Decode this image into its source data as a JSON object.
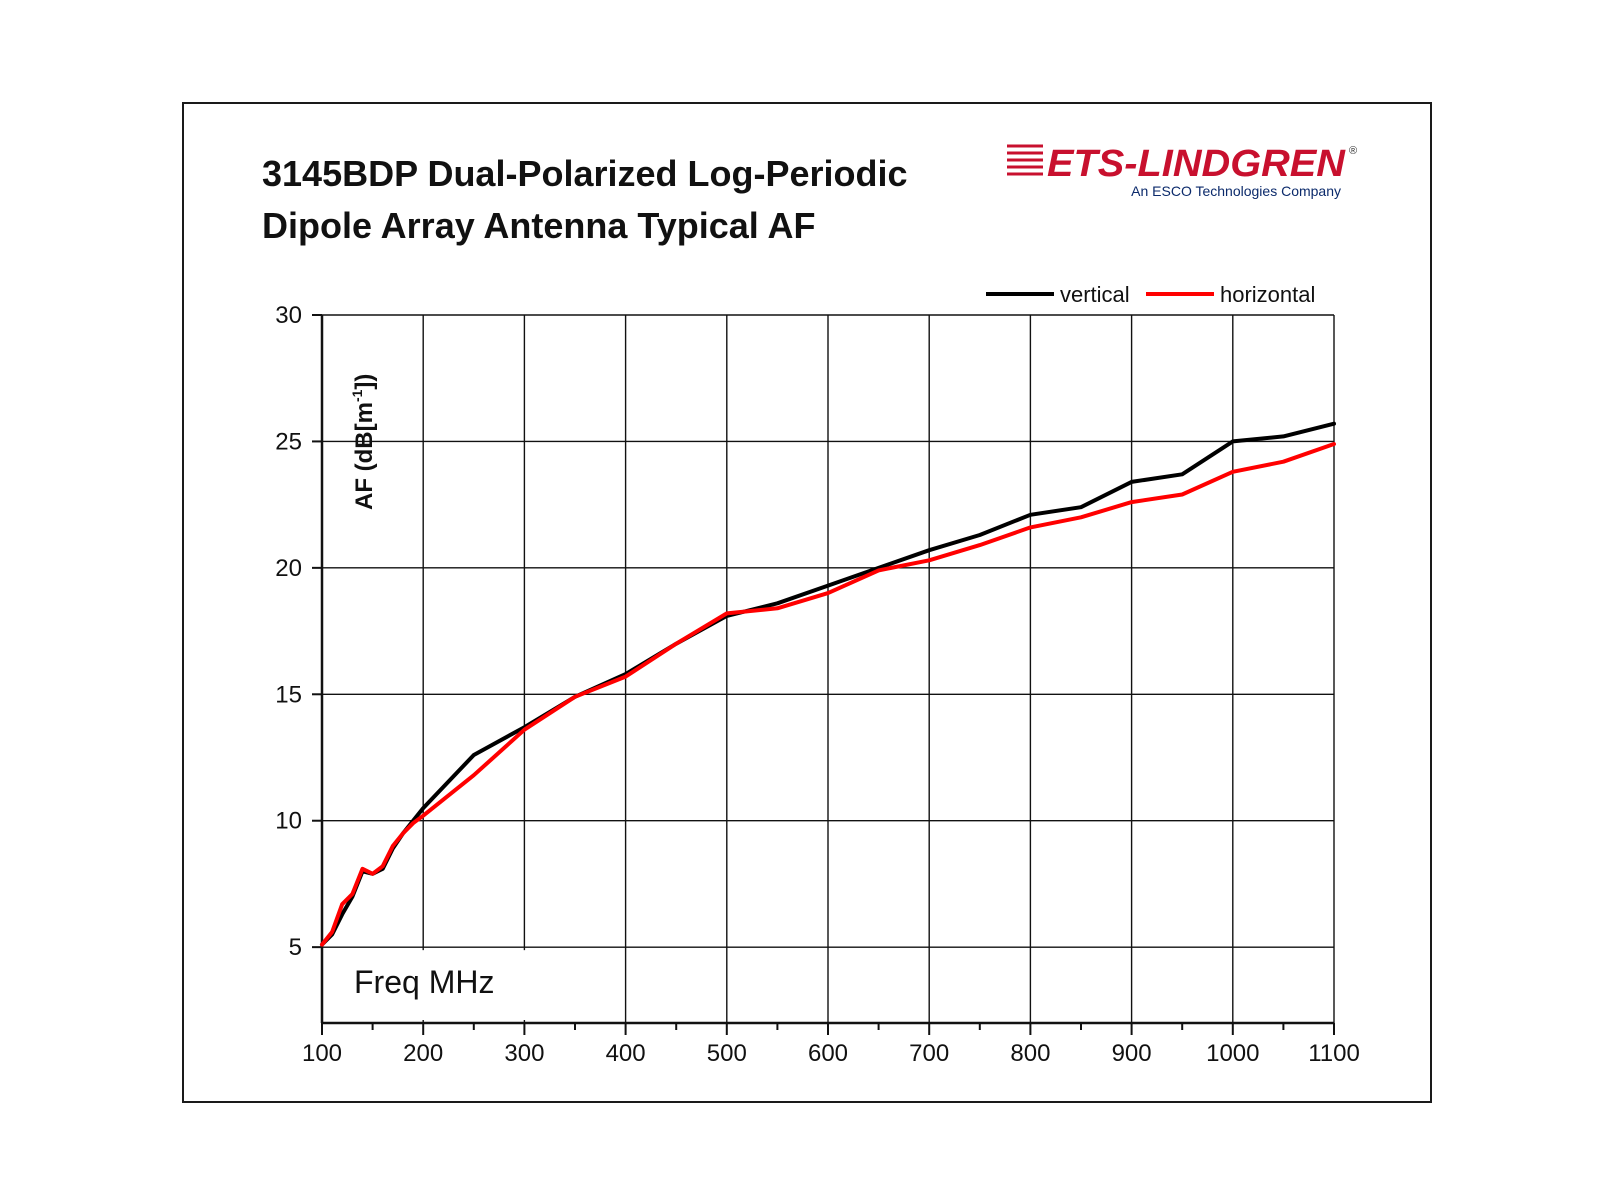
{
  "title": {
    "line1": "3145BDP Dual-Polarized Log-Periodic",
    "line2": "Dipole Array Antenna Typical AF"
  },
  "logo": {
    "brand": "ETS-LINDGREN",
    "tagline": "An ESCO Technologies Company",
    "color": "#c8102e",
    "navy": "#0b2a6b"
  },
  "chart_data": {
    "type": "line",
    "xlabel": "Freq MHz",
    "ylabel": "AF (dB[m",
    "ylabel_sup": "-1",
    "ylabel_end": "])",
    "xlim": [
      100,
      1100
    ],
    "ylim": [
      2,
      30
    ],
    "xticks": [
      100,
      200,
      300,
      400,
      500,
      600,
      700,
      800,
      900,
      1000,
      1100
    ],
    "yticks": [
      5,
      10,
      15,
      20,
      25,
      30
    ],
    "grid": true,
    "legend_position": "top-right",
    "series": [
      {
        "name": "vertical",
        "color": "#000000",
        "x": [
          100,
          110,
          120,
          130,
          140,
          150,
          160,
          170,
          180,
          190,
          200,
          250,
          300,
          350,
          400,
          450,
          500,
          550,
          600,
          650,
          700,
          750,
          800,
          850,
          900,
          950,
          1000,
          1050,
          1100
        ],
        "y": [
          5.1,
          5.5,
          6.3,
          7.0,
          8.0,
          7.9,
          8.1,
          8.9,
          9.5,
          10.0,
          10.5,
          12.6,
          13.7,
          14.9,
          15.8,
          17.0,
          18.1,
          18.6,
          19.3,
          20.0,
          20.7,
          21.3,
          22.1,
          22.4,
          23.4,
          23.7,
          25.0,
          25.2,
          25.7
        ]
      },
      {
        "name": "horizontal",
        "color": "#ff0000",
        "x": [
          100,
          110,
          120,
          130,
          140,
          150,
          160,
          170,
          180,
          190,
          200,
          250,
          300,
          350,
          400,
          450,
          500,
          550,
          600,
          650,
          700,
          750,
          800,
          850,
          900,
          950,
          1000,
          1050,
          1100
        ],
        "y": [
          5.1,
          5.6,
          6.7,
          7.1,
          8.1,
          7.9,
          8.2,
          9.0,
          9.5,
          9.9,
          10.2,
          11.8,
          13.6,
          14.9,
          15.7,
          17.0,
          18.2,
          18.4,
          19.0,
          19.9,
          20.3,
          20.9,
          21.6,
          22.0,
          22.6,
          22.9,
          23.8,
          24.2,
          24.9
        ]
      }
    ]
  }
}
